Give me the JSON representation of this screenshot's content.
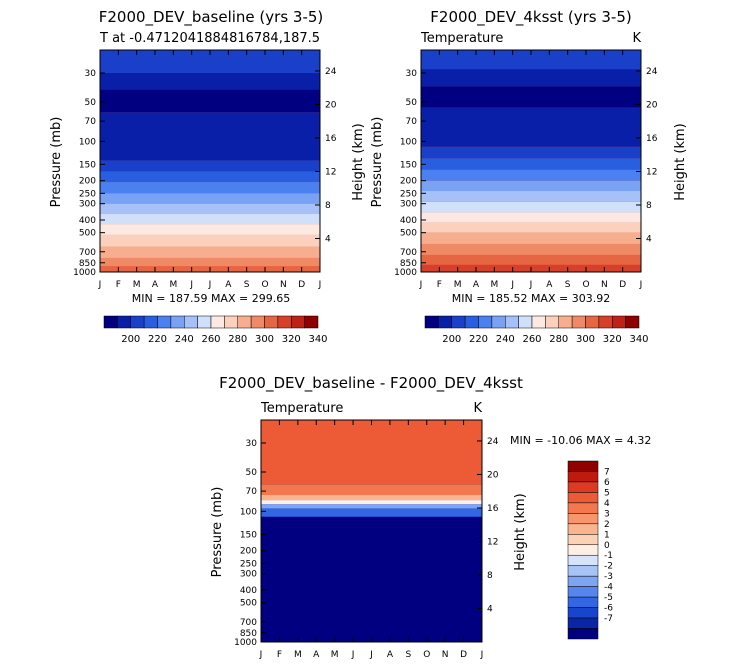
{
  "chart_data": [
    {
      "type": "heatmap",
      "title": "F2000_DEV_baseline (yrs 3-5)",
      "subtitle_left": "T at -0.4712041884816784,187.5",
      "subtitle_right": "",
      "ylabel": "Pressure (mb)",
      "ylabel_right": "Height (km)",
      "x_categories": [
        "J",
        "F",
        "M",
        "A",
        "M",
        "J",
        "J",
        "A",
        "S",
        "O",
        "N",
        "D",
        "J"
      ],
      "y_tick_labels": [
        "30",
        "50",
        "70",
        "100",
        "150",
        "200",
        "250",
        "300",
        "400",
        "500",
        "700",
        "850",
        "1000"
      ],
      "y_tick_values": [
        30,
        50,
        70,
        100,
        150,
        200,
        250,
        300,
        400,
        500,
        700,
        850,
        1000
      ],
      "ylim": [
        1000,
        20
      ],
      "y_scale": "log",
      "height_tick_labels": [
        "24",
        "20",
        "16",
        "12",
        "8",
        "4"
      ],
      "height_tick_values": [
        24,
        20,
        16,
        12,
        8,
        4
      ],
      "stats": "MIN = 187.59  MAX = 299.65",
      "colorbar": {
        "orientation": "horizontal",
        "labels": [
          "200",
          "220",
          "240",
          "260",
          "280",
          "300",
          "320",
          "340"
        ],
        "colors": [
          "#000080",
          "#0a1fa8",
          "#1a3fc8",
          "#2a5ee0",
          "#4a80ef",
          "#7aa2f4",
          "#a6c1f7",
          "#d0e0fb",
          "#fbe9e2",
          "#fbd0bc",
          "#f7ae8e",
          "#f08a66",
          "#e66542",
          "#d6402a",
          "#bf2116",
          "#8f0000"
        ]
      },
      "color_bands": [
        {
          "p": 1000,
          "level": 12
        },
        {
          "p": 900,
          "level": 11
        },
        {
          "p": 780,
          "level": 10
        },
        {
          "p": 640,
          "level": 9
        },
        {
          "p": 520,
          "level": 8
        },
        {
          "p": 430,
          "level": 7
        },
        {
          "p": 360,
          "level": 6
        },
        {
          "p": 300,
          "level": 5
        },
        {
          "p": 250,
          "level": 4
        },
        {
          "p": 205,
          "level": 3
        },
        {
          "p": 170,
          "level": 2
        },
        {
          "p": 140,
          "level": 1
        },
        {
          "p": 60,
          "level": 0
        },
        {
          "p": 40,
          "level": 1
        },
        {
          "p": 30,
          "level": 2
        }
      ]
    },
    {
      "type": "heatmap",
      "title": "F2000_DEV_4ksst (yrs 3-5)",
      "subtitle_left": "Temperature",
      "subtitle_right": "K",
      "ylabel": "Pressure (mb)",
      "ylabel_right": "Height (km)",
      "x_categories": [
        "J",
        "F",
        "M",
        "A",
        "M",
        "J",
        "J",
        "A",
        "S",
        "O",
        "N",
        "D",
        "J"
      ],
      "y_tick_labels": [
        "30",
        "50",
        "70",
        "100",
        "150",
        "200",
        "250",
        "300",
        "400",
        "500",
        "700",
        "850",
        "1000"
      ],
      "y_tick_values": [
        30,
        50,
        70,
        100,
        150,
        200,
        250,
        300,
        400,
        500,
        700,
        850,
        1000
      ],
      "ylim": [
        1000,
        20
      ],
      "y_scale": "log",
      "height_tick_labels": [
        "24",
        "20",
        "16",
        "12",
        "8",
        "4"
      ],
      "height_tick_values": [
        24,
        20,
        16,
        12,
        8,
        4
      ],
      "stats": "MIN = 185.52  MAX = 303.92",
      "colorbar": {
        "orientation": "horizontal",
        "labels": [
          "200",
          "220",
          "240",
          "260",
          "280",
          "300",
          "320",
          "340"
        ],
        "colors": [
          "#000080",
          "#0a1fa8",
          "#1a3fc8",
          "#2a5ee0",
          "#4a80ef",
          "#7aa2f4",
          "#a6c1f7",
          "#d0e0fb",
          "#fbe9e2",
          "#fbd0bc",
          "#f7ae8e",
          "#f08a66",
          "#e66542",
          "#d6402a",
          "#bf2116",
          "#8f0000"
        ]
      },
      "color_bands": [
        {
          "p": 1000,
          "level": 13
        },
        {
          "p": 880,
          "level": 12
        },
        {
          "p": 740,
          "level": 11
        },
        {
          "p": 610,
          "level": 10
        },
        {
          "p": 500,
          "level": 9
        },
        {
          "p": 420,
          "level": 8
        },
        {
          "p": 350,
          "level": 7
        },
        {
          "p": 290,
          "level": 6
        },
        {
          "p": 240,
          "level": 5
        },
        {
          "p": 200,
          "level": 4
        },
        {
          "p": 165,
          "level": 3
        },
        {
          "p": 135,
          "level": 2
        },
        {
          "p": 110,
          "level": 1
        },
        {
          "p": 55,
          "level": 0
        },
        {
          "p": 38,
          "level": 1
        },
        {
          "p": 28,
          "level": 2
        }
      ]
    },
    {
      "type": "heatmap",
      "title": "F2000_DEV_baseline - F2000_DEV_4ksst",
      "subtitle_left": "Temperature",
      "subtitle_right": "K",
      "ylabel": "Pressure (mb)",
      "ylabel_right": "Height (km)",
      "x_categories": [
        "J",
        "F",
        "M",
        "A",
        "M",
        "J",
        "J",
        "A",
        "S",
        "O",
        "N",
        "D",
        "J"
      ],
      "y_tick_labels": [
        "30",
        "50",
        "70",
        "100",
        "150",
        "200",
        "250",
        "300",
        "400",
        "500",
        "700",
        "850",
        "1000"
      ],
      "y_tick_values": [
        30,
        50,
        70,
        100,
        150,
        200,
        250,
        300,
        400,
        500,
        700,
        850,
        1000
      ],
      "ylim": [
        1000,
        20
      ],
      "y_scale": "log",
      "height_tick_labels": [
        "24",
        "20",
        "16",
        "12",
        "8",
        "4"
      ],
      "height_tick_values": [
        24,
        20,
        16,
        12,
        8,
        4
      ],
      "stats": "MIN = -10.06  MAX =    4.32",
      "colorbar": {
        "orientation": "vertical",
        "labels": [
          "7",
          "6",
          "5",
          "4",
          "3",
          "2",
          "1",
          "0",
          "-1",
          "-2",
          "-3",
          "-4",
          "-5",
          "-6",
          "-7"
        ],
        "colors": [
          "#8f0000",
          "#bf1a0e",
          "#dc3a22",
          "#ec5a36",
          "#f4784e",
          "#f7966c",
          "#fab48e",
          "#fcd2b6",
          "#fdeee6",
          "#d5e3fb",
          "#a8c4f7",
          "#7ea5f2",
          "#5686ec",
          "#3266e2",
          "#1845cc",
          "#0a26a8",
          "#000080"
        ]
      },
      "color_bands": [
        {
          "p": 1000,
          "level": 0
        },
        {
          "p": 110,
          "level": 3
        },
        {
          "p": 95,
          "level": 5
        },
        {
          "p": 88,
          "level": 8
        },
        {
          "p": 82,
          "level": 10
        },
        {
          "p": 75,
          "level": 12
        },
        {
          "p": 62,
          "level": 13
        },
        {
          "p": 20,
          "level": 12
        }
      ]
    }
  ]
}
